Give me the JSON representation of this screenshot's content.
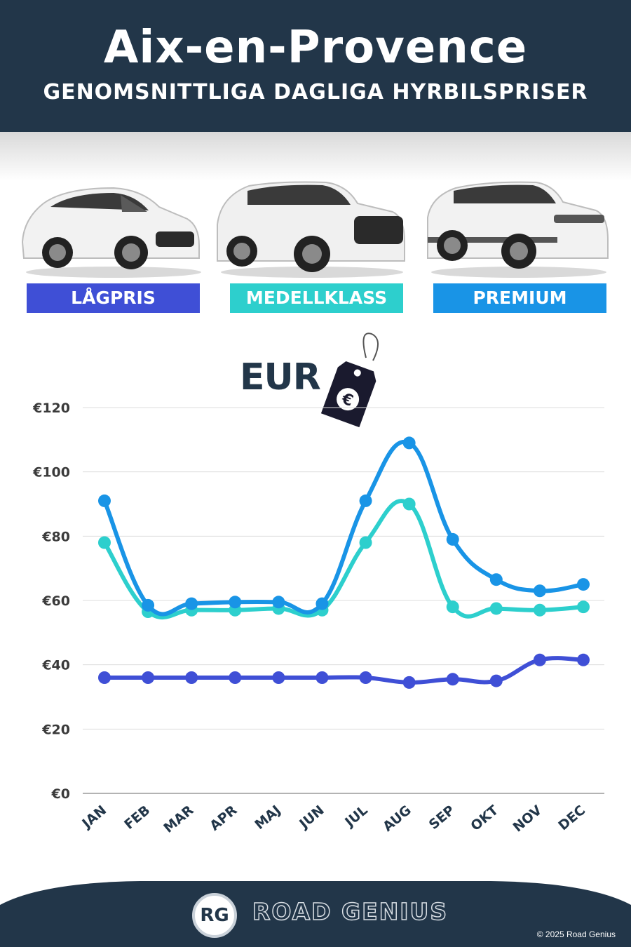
{
  "header": {
    "title": "Aix-en-Provence",
    "subtitle": "GENOMSNITTLIGA DAGLIGA HYRBILSPRISER"
  },
  "categories": [
    {
      "label": "LÅGPRIS",
      "color": "#3f4fd6"
    },
    {
      "label": "MEDELLKLASS",
      "color": "#2dcfcd"
    },
    {
      "label": "PREMIUM",
      "color": "#1994e6"
    }
  ],
  "currency_label": "EUR",
  "currency_icon": "euro-price-tag-icon",
  "chart_data": {
    "type": "line",
    "categories": [
      "JAN",
      "FEB",
      "MAR",
      "APR",
      "MAJ",
      "JUN",
      "JUL",
      "AUG",
      "SEP",
      "OKT",
      "NOV",
      "DEC"
    ],
    "series": [
      {
        "name": "LÅGPRIS",
        "color": "#3f4fd6",
        "values": [
          36,
          36,
          36,
          36,
          36,
          36,
          36,
          34.5,
          35.5,
          35,
          41.5,
          41.5
        ]
      },
      {
        "name": "MEDELLKLASS",
        "color": "#2dcfcd",
        "values": [
          78,
          56.5,
          57,
          57,
          57.5,
          57,
          78,
          90,
          58,
          57.5,
          57,
          58
        ]
      },
      {
        "name": "PREMIUM",
        "color": "#1994e6",
        "values": [
          91,
          58.5,
          59,
          59.5,
          59.5,
          59,
          91,
          109,
          79,
          66.5,
          63,
          65
        ]
      }
    ],
    "ylim": [
      0,
      120
    ],
    "yticks": [
      "€0",
      "€20",
      "€40",
      "€60",
      "€80",
      "€100",
      "€120"
    ],
    "grid": true
  },
  "footer": {
    "logo_text": "RG",
    "brand": "ROAD GENIUS",
    "copyright": "© 2025 Road Genius"
  }
}
